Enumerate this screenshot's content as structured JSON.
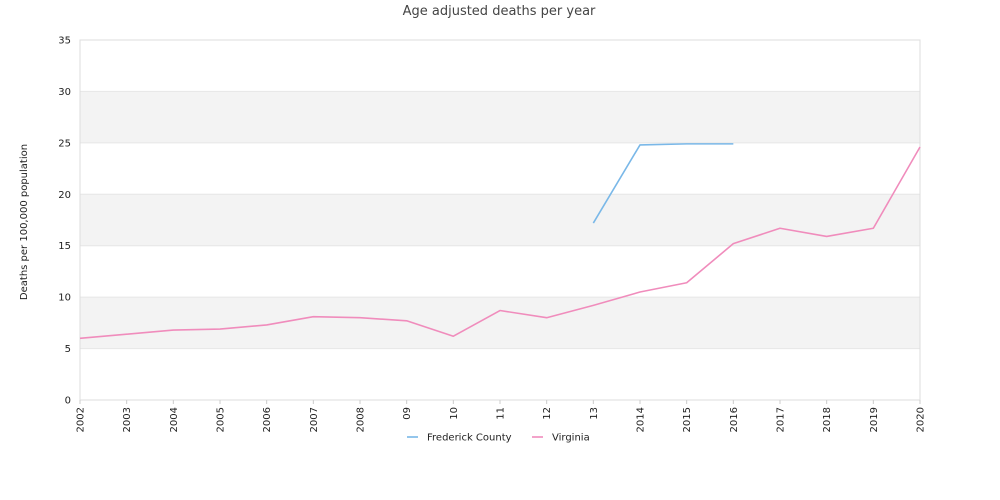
{
  "chart_data": {
    "type": "line",
    "title": "Age adjusted deaths per year",
    "xlabel": "",
    "ylabel": "Deaths per 100,000 population",
    "ylim": [
      0,
      35
    ],
    "yticks": [
      0,
      5,
      10,
      15,
      20,
      25,
      30,
      35
    ],
    "categories": [
      "2002",
      "2003",
      "2004",
      "2005",
      "2006",
      "2007",
      "2008",
      "09",
      "10",
      "11",
      "12",
      "13",
      "2014",
      "2015",
      "2016",
      "2017",
      "2018",
      "2019",
      "2020"
    ],
    "grid": "alternating horizontal bands",
    "legend_position": "bottom-center",
    "series": [
      {
        "name": "Frederick County",
        "color": "#7ab8e8",
        "values": [
          null,
          null,
          null,
          null,
          null,
          null,
          null,
          null,
          null,
          null,
          null,
          17.2,
          24.8,
          24.9,
          24.9,
          null,
          null,
          null,
          null
        ]
      },
      {
        "name": "Virginia",
        "color": "#f08cbc",
        "values": [
          6.0,
          6.4,
          6.8,
          6.9,
          7.3,
          8.1,
          8.0,
          7.7,
          6.2,
          8.7,
          8.0,
          9.2,
          10.5,
          11.4,
          15.2,
          16.7,
          15.9,
          16.7,
          24.6
        ]
      }
    ]
  }
}
